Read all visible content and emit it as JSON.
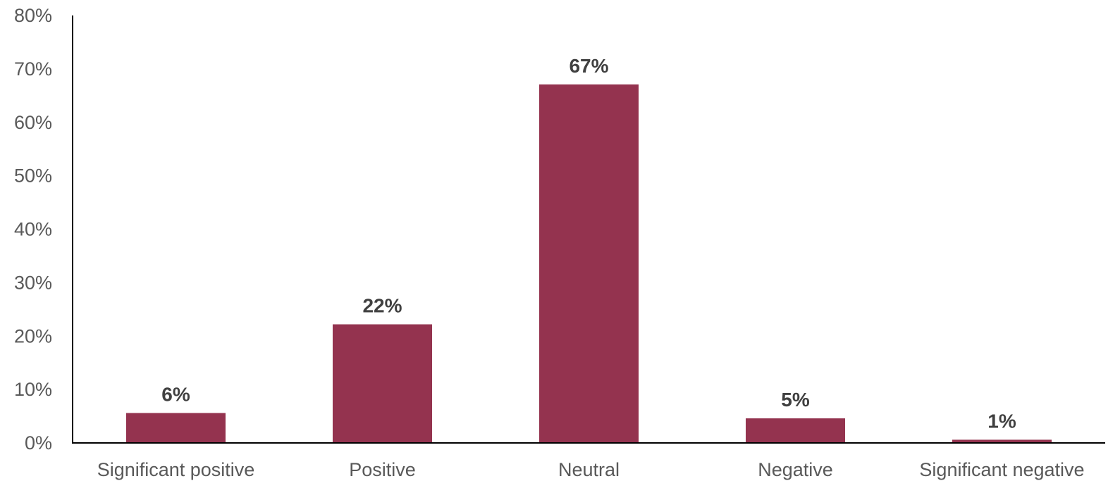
{
  "chart_data": {
    "type": "bar",
    "categories": [
      "Significant positive",
      "Positive",
      "Neutral",
      "Negative",
      "Significant negative"
    ],
    "values": [
      5.6,
      22.2,
      67.1,
      4.6,
      0.6
    ],
    "data_labels": [
      "6%",
      "22%",
      "67%",
      "5%",
      "1%"
    ],
    "ylim": [
      0,
      80
    ],
    "yticks": [
      0,
      10,
      20,
      30,
      40,
      50,
      60,
      70,
      80
    ],
    "ytick_labels": [
      "0%",
      "10%",
      "20%",
      "30%",
      "40%",
      "50%",
      "60%",
      "70%",
      "80%"
    ],
    "title": "",
    "xlabel": "",
    "ylabel": "",
    "grid": false,
    "legend": "none",
    "bar_color": "#94334F",
    "axis_color": "#000000"
  }
}
